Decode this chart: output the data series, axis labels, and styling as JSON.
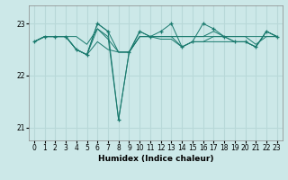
{
  "xlabel": "Humidex (Indice chaleur)",
  "ylabel": "",
  "bg_color": "#cce8e8",
  "grid_color": "#b8d8d8",
  "line_color": "#1a7a6e",
  "xlim": [
    -0.5,
    23.5
  ],
  "ylim": [
    20.75,
    23.35
  ],
  "yticks": [
    21,
    22,
    23
  ],
  "xticks": [
    0,
    1,
    2,
    3,
    4,
    5,
    6,
    7,
    8,
    9,
    10,
    11,
    12,
    13,
    14,
    15,
    16,
    17,
    18,
    19,
    20,
    21,
    22,
    23
  ],
  "series": [
    [
      22.65,
      22.75,
      22.75,
      22.75,
      22.75,
      22.6,
      22.9,
      22.75,
      21.15,
      22.45,
      22.75,
      22.75,
      22.75,
      22.75,
      22.75,
      22.75,
      22.75,
      22.75,
      22.75,
      22.75,
      22.75,
      22.75,
      22.75,
      22.75
    ],
    [
      22.65,
      22.75,
      22.75,
      22.75,
      22.5,
      22.4,
      23.0,
      22.85,
      22.45,
      22.45,
      22.75,
      22.75,
      22.75,
      22.75,
      22.75,
      22.75,
      22.75,
      22.85,
      22.75,
      22.75,
      22.75,
      22.6,
      22.75,
      22.75
    ],
    [
      22.65,
      22.75,
      22.75,
      22.75,
      22.5,
      22.4,
      22.9,
      22.7,
      22.45,
      22.45,
      22.85,
      22.75,
      22.7,
      22.7,
      22.55,
      22.65,
      22.65,
      22.75,
      22.75,
      22.65,
      22.65,
      22.55,
      22.85,
      22.75
    ],
    [
      22.65,
      22.75,
      22.75,
      22.75,
      22.5,
      22.4,
      22.65,
      22.5,
      22.45,
      22.45,
      22.75,
      22.75,
      22.75,
      22.75,
      22.55,
      22.65,
      22.65,
      22.65,
      22.65,
      22.65,
      22.65,
      22.55,
      22.85,
      22.75
    ]
  ],
  "points_x": [
    0,
    1,
    2,
    3,
    4,
    5,
    6,
    7,
    8,
    9,
    10,
    11,
    12,
    13,
    14,
    15,
    16,
    17,
    18,
    19,
    20,
    21,
    22,
    23
  ],
  "point_values": [
    22.65,
    22.75,
    22.75,
    22.75,
    22.5,
    22.4,
    23.0,
    22.85,
    21.15,
    22.45,
    22.85,
    22.75,
    22.85,
    23.0,
    22.55,
    22.65,
    23.0,
    22.9,
    22.75,
    22.65,
    22.65,
    22.55,
    22.85,
    22.75
  ]
}
